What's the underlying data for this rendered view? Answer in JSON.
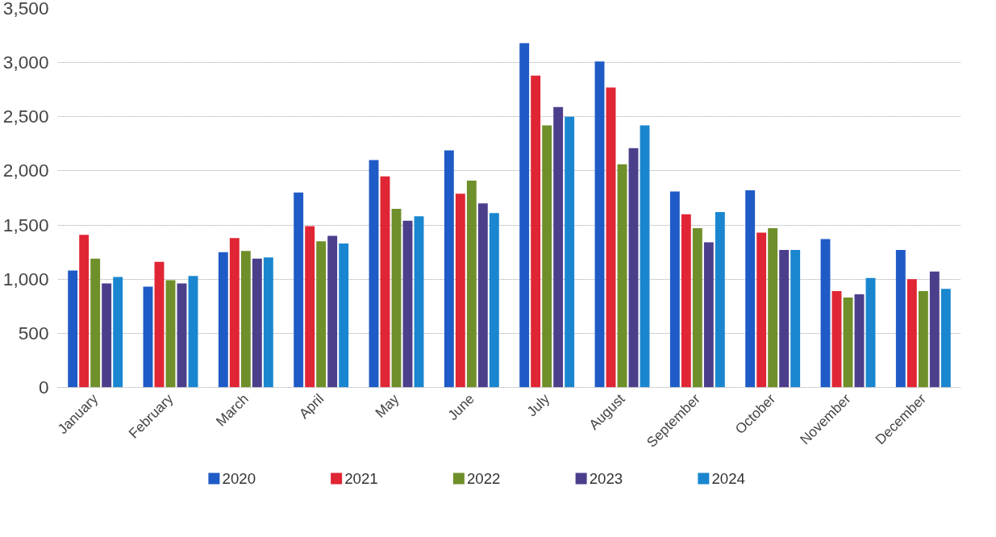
{
  "chart_data": {
    "type": "bar",
    "categories": [
      "January",
      "February",
      "March",
      "April",
      "May",
      "June",
      "July",
      "August",
      "September",
      "October",
      "November",
      "December"
    ],
    "series": [
      {
        "name": "2020",
        "color": "#1f5bc6",
        "values": [
          1080,
          930,
          1250,
          1800,
          2100,
          2190,
          3180,
          3010,
          1810,
          1820,
          1370,
          1270
        ]
      },
      {
        "name": "2021",
        "color": "#e02535",
        "values": [
          1410,
          1160,
          1380,
          1490,
          1950,
          1790,
          2880,
          2770,
          1600,
          1430,
          890,
          1000
        ]
      },
      {
        "name": "2022",
        "color": "#6f8f2a",
        "values": [
          1190,
          990,
          1260,
          1350,
          1650,
          1910,
          2420,
          2060,
          1470,
          1470,
          830,
          890
        ]
      },
      {
        "name": "2023",
        "color": "#4b3f8c",
        "values": [
          960,
          960,
          1190,
          1400,
          1540,
          1700,
          2590,
          2210,
          1340,
          1270,
          860,
          1070
        ]
      },
      {
        "name": "2024",
        "color": "#1a86d0",
        "values": [
          1020,
          1030,
          1200,
          1330,
          1580,
          1610,
          2500,
          2420,
          1620,
          1270,
          1010,
          910
        ]
      }
    ],
    "ylim": [
      0,
      3500
    ],
    "yticks": [
      {
        "value": 0,
        "label": "0"
      },
      {
        "value": 500,
        "label": "500"
      },
      {
        "value": 1000,
        "label": "1,000"
      },
      {
        "value": 1500,
        "label": "1,500"
      },
      {
        "value": 2000,
        "label": "2,000"
      },
      {
        "value": 2500,
        "label": "2,500"
      },
      {
        "value": 3000,
        "label": "3,000"
      },
      {
        "value": 3500,
        "label": "3,500"
      }
    ],
    "grid": "y",
    "legend": "bottom"
  }
}
